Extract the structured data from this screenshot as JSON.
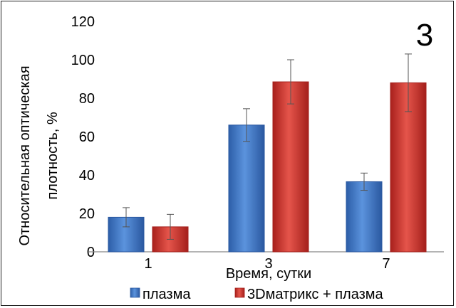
{
  "panel_label": "3",
  "chart_data": {
    "type": "bar",
    "categories": [
      "1",
      "3",
      "7"
    ],
    "series": [
      {
        "name": "плазма",
        "color": "#3f78c9",
        "values": [
          18,
          66,
          36.5
        ],
        "error": [
          5,
          8.5,
          4.5
        ]
      },
      {
        "name": "3Dматрикс + плазма",
        "color": "#d2312b",
        "values": [
          13,
          88.5,
          88
        ],
        "error": [
          6.5,
          11.5,
          15
        ]
      }
    ],
    "xlabel": "Время, сутки",
    "ylabel": "Относительная оптическая плотность, %",
    "ylim": [
      0,
      120
    ],
    "yticks": [
      0,
      20,
      40,
      60,
      80,
      100,
      120
    ],
    "grid": false,
    "legend_position": "bottom"
  }
}
